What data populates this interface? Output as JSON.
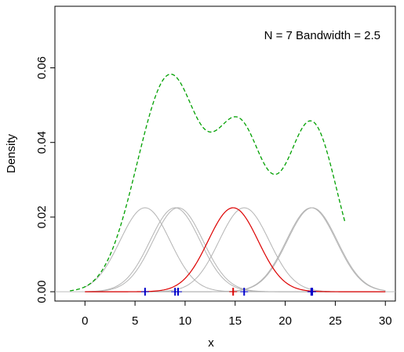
{
  "chart_data": {
    "type": "line",
    "title": "",
    "annotation": "N = 7   Bandwidth = 2.5",
    "xlabel": "x",
    "ylabel": "Density",
    "xlim": [
      -3,
      31
    ],
    "ylim": [
      -0.0025,
      0.0765
    ],
    "xticks": [
      0,
      5,
      10,
      15,
      20,
      25,
      30
    ],
    "yticks": [
      0.0,
      0.02,
      0.04,
      0.06
    ],
    "ytick_labels": [
      "0.00",
      "0.02",
      "0.04",
      "0.06"
    ],
    "bandwidth": 2.5,
    "n": 7,
    "observations": [
      6.0,
      9.0,
      9.3,
      14.8,
      15.9,
      22.6,
      22.7
    ],
    "highlighted_observation": 14.8,
    "kernel_range": [
      0,
      30
    ],
    "density_range": [
      -1.5,
      26
    ],
    "grid": false,
    "legend": "none",
    "colors": {
      "density": "#00a000",
      "kernel": "#b4b4b4",
      "highlighted_kernel": "#dd0000",
      "rug": "#0000cc",
      "highlighted_rug": "#dd0000",
      "axis": "#000000",
      "baseline": "#bdbdbd"
    }
  }
}
